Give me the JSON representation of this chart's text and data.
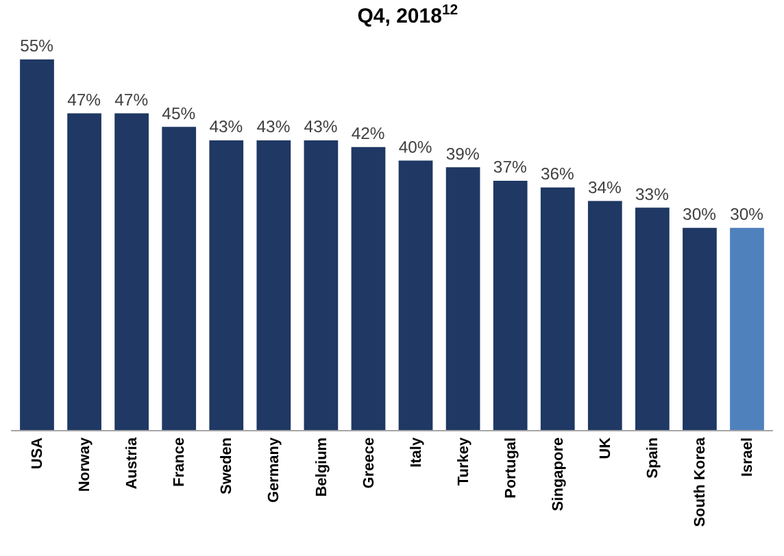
{
  "chart_data": {
    "type": "bar",
    "title": "Q4, 2018$^{12}$",
    "categories": [
      "USA",
      "Norway",
      "Austria",
      "France",
      "Sweden",
      "Germany",
      "Belgium",
      "Greece",
      "Italy",
      "Turkey",
      "Portugal",
      "Singapore",
      "UK",
      "Spain",
      "South Korea",
      "Israel"
    ],
    "values": [
      55,
      47,
      47,
      45,
      43,
      43,
      43,
      42,
      40,
      39,
      37,
      36,
      34,
      33,
      30,
      30
    ],
    "value_labels": [
      "55%",
      "47%",
      "47%",
      "45%",
      "43%",
      "43%",
      "43%",
      "42%",
      "40%",
      "39%",
      "37%",
      "36%",
      "34%",
      "33%",
      "30%",
      "30%"
    ],
    "colors": [
      "#1f3864",
      "#1f3864",
      "#1f3864",
      "#1f3864",
      "#1f3864",
      "#1f3864",
      "#1f3864",
      "#1f3864",
      "#1f3864",
      "#1f3864",
      "#1f3864",
      "#1f3864",
      "#1f3864",
      "#1f3864",
      "#1f3864",
      "#4f81bd"
    ],
    "legend": false
  }
}
